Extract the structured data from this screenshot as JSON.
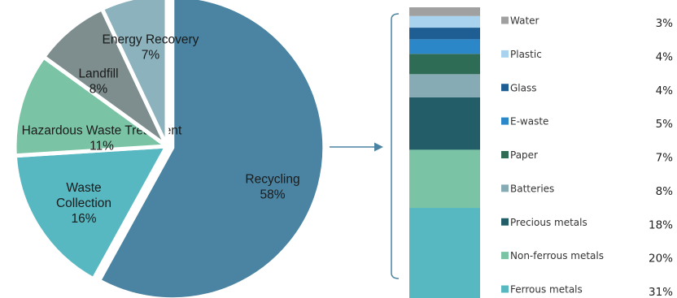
{
  "chart_data": [
    {
      "type": "pie",
      "title": "",
      "slices": [
        {
          "label_lines": [
            "Recycling",
            "58%"
          ],
          "value": 58,
          "color": "#4a84a2"
        },
        {
          "label_lines": [
            "Waste",
            "Collection",
            "16%"
          ],
          "value": 16,
          "color": "#57b8c2"
        },
        {
          "label_lines": [
            "Hazardous  Waste Treatment",
            "11%"
          ],
          "value": 11,
          "color": "#7ac4a5"
        },
        {
          "label_lines": [
            "Landfill",
            "8%"
          ],
          "value": 8,
          "color": "#7e8e8e"
        },
        {
          "label_lines": [
            "Energy Recovery",
            "7%"
          ],
          "value": 7,
          "color": "#8cb2bd"
        }
      ],
      "exploded": "Recycling"
    },
    {
      "type": "bar",
      "stacked": true,
      "title": "",
      "categories": [
        "Ferrous metals",
        "Non-ferrous metals",
        "Precious metals",
        "Batteries",
        "Paper",
        "E-waste",
        "Glass",
        "Plastic",
        "Water"
      ],
      "values": [
        31,
        20,
        18,
        8,
        7,
        5,
        4,
        4,
        3
      ],
      "value_labels": [
        "31%",
        "20%",
        "18%",
        "8%",
        "7%",
        "5%",
        "4%",
        "4%",
        "3%"
      ],
      "colors": [
        "#57b8c2",
        "#7ac4a5",
        "#235e68",
        "#87abb5",
        "#2f6c55",
        "#2c87c9",
        "#1e5e93",
        "#a9d2ee",
        "#a0a0a0"
      ],
      "legend": "right"
    }
  ]
}
